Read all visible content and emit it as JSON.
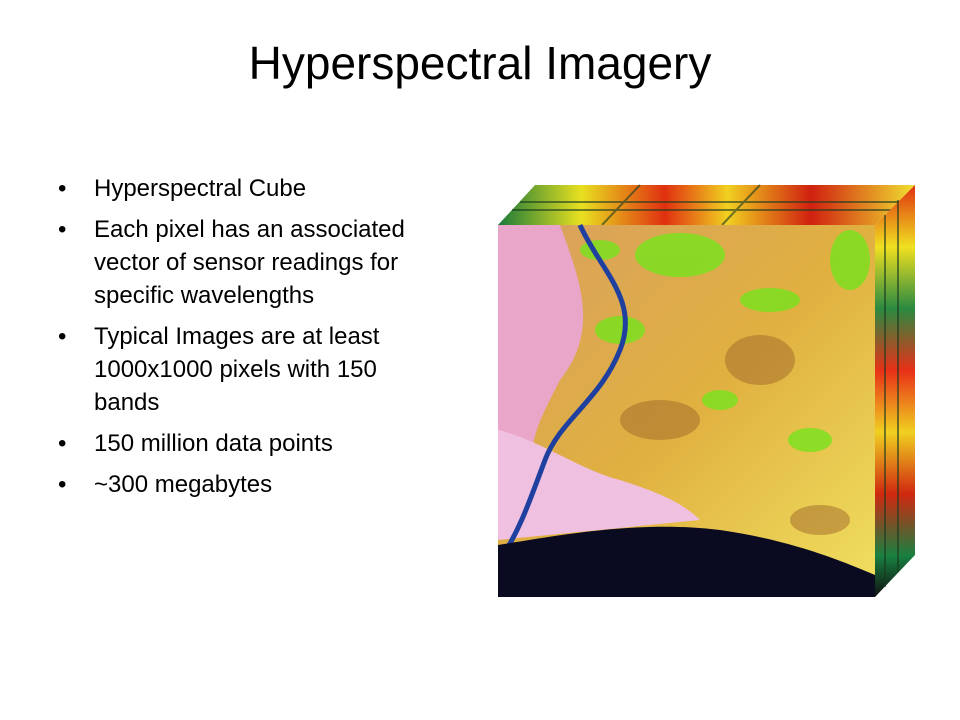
{
  "slide": {
    "title": "Hyperspectral Imagery",
    "bullets": [
      "Hyperspectral Cube",
      "Each pixel has an associated vector of sensor readings for specific wavelengths",
      "Typical Images are at least 1000x1000 pixels with 150 bands",
      "150 million data points",
      "~300 megabytes"
    ]
  }
}
